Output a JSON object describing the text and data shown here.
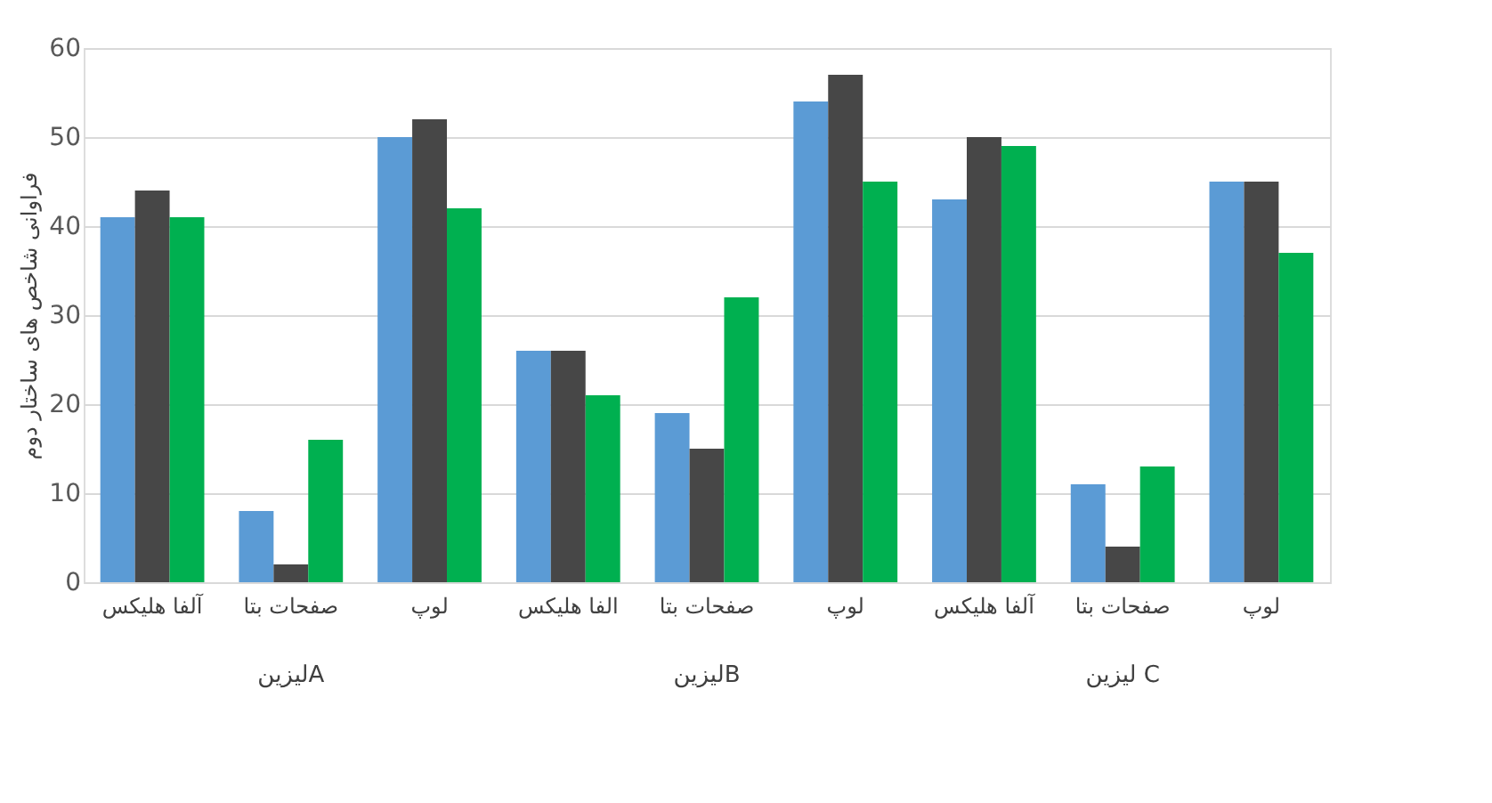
{
  "chart_data": {
    "type": "bar",
    "ylabel": "فراوانی شاخص های ساختار دوم",
    "categories": [
      "آلفا هلیکس",
      "صفحات بتا",
      "لوپ",
      "الفا هلیکس",
      "صفحات بتا",
      "لوپ",
      "آلفا هلیکس",
      "صفحات بتا",
      "لوپ"
    ],
    "series": [
      {
        "color": "#5b9bd5",
        "values": [
          41,
          8,
          50,
          26,
          19,
          54,
          43,
          11,
          45
        ]
      },
      {
        "color": "#474747",
        "values": [
          44,
          2,
          52,
          26,
          15,
          57,
          50,
          4,
          45
        ]
      },
      {
        "color": "#00b050",
        "values": [
          41,
          16,
          42,
          21,
          32,
          45,
          49,
          13,
          37
        ]
      }
    ],
    "annotations": [
      "لیزینA",
      "لیزینB",
      "لیزین C"
    ],
    "ylim": [
      0,
      60
    ],
    "yticks": [
      0,
      10,
      20,
      30,
      40,
      50,
      60
    ],
    "grid": "y"
  }
}
